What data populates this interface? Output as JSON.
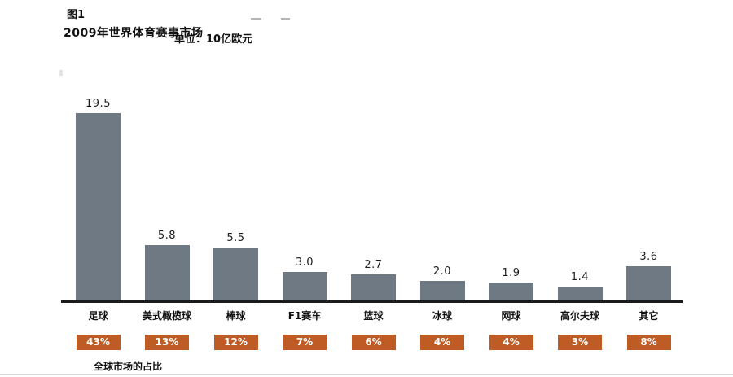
{
  "header": {
    "figure_label": "图1",
    "title": "2009年世界体育赛事市场",
    "unit": "单位：10亿欧元"
  },
  "chart_data": {
    "type": "bar",
    "title": "2009年世界体育赛事市场",
    "unit_label": "单位：10亿欧元",
    "categories": [
      "足球",
      "美式橄榄球",
      "棒球",
      "F1赛车",
      "篮球",
      "冰球",
      "网球",
      "高尔夫球",
      "其它"
    ],
    "values": [
      19.5,
      5.8,
      5.5,
      3.0,
      2.7,
      2.0,
      1.9,
      1.4,
      3.6
    ],
    "value_labels": [
      "19.5",
      "5.8",
      "5.5",
      "3.0",
      "2.7",
      "2.0",
      "1.9",
      "1.4",
      "3.6"
    ],
    "percent_labels": [
      "43%",
      "13%",
      "12%",
      "7%",
      "6%",
      "4%",
      "4%",
      "3%",
      "8%"
    ],
    "footer_label": "全球市场的占比",
    "xlabel": "",
    "ylabel": "",
    "ylim": [
      0,
      20
    ],
    "grid": false,
    "legend": "none",
    "bar_color": "#6e7984",
    "percent_box_color": "#bf5c26",
    "axis_color": "#1b1b1b"
  }
}
